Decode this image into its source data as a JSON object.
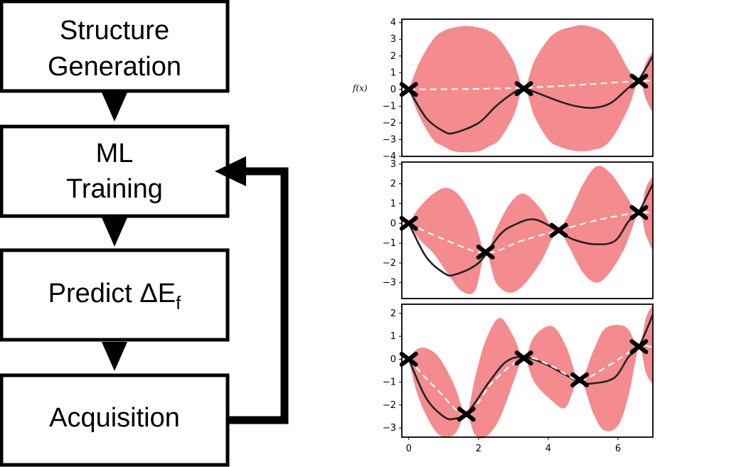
{
  "flowchart": {
    "boxes": [
      {
        "lines": [
          "Structure",
          "Generation"
        ]
      },
      {
        "lines": [
          "ML",
          "Training"
        ]
      },
      {
        "predict_text": "Predict ΔE",
        "predict_subscript": "f"
      },
      {
        "lines": [
          "Acquisition"
        ]
      }
    ]
  },
  "plots": {
    "y_label": "f(x)",
    "x_ticks": [
      "0",
      "2",
      "4",
      "6"
    ],
    "panel1_y_ticks": [
      "4",
      "3",
      "2",
      "1",
      "0",
      "−1",
      "−2",
      "−3",
      "−4"
    ],
    "panel2_y_ticks": [
      "3",
      "2",
      "1",
      "0",
      "−1",
      "−2",
      "−3"
    ],
    "panel3_y_ticks": [
      "2",
      "1",
      "0",
      "−1",
      "−2",
      "−3"
    ]
  },
  "chart_data": [
    {
      "type": "line",
      "ylabel": "f(x)",
      "xlim": [
        -0.2,
        7.0
      ],
      "ylim": [
        -4,
        4.2
      ],
      "series": [
        {
          "role": "true function",
          "style": "solid-black",
          "x": [
            0,
            0.5,
            1.0,
            1.3,
            2.0,
            2.5,
            3.0,
            3.3,
            3.8,
            4.3,
            4.8,
            5.3,
            5.8,
            6.3,
            6.6,
            7.0
          ],
          "y": [
            0,
            -1.7,
            -2.5,
            -2.6,
            -2.0,
            -1.0,
            -0.2,
            0.05,
            -0.3,
            -0.7,
            -1.0,
            -1.1,
            -0.8,
            0.1,
            0.6,
            2.0
          ]
        },
        {
          "role": "predicted mean",
          "style": "dashed-white",
          "x": [
            0,
            3.3,
            6.6,
            7.0
          ],
          "y": [
            0,
            0.1,
            0.5,
            0.45
          ]
        },
        {
          "role": "uncertainty band",
          "style": "fill-pink",
          "x": [
            0.0,
            0.3,
            0.7,
            1.0,
            1.3,
            1.65,
            2.0,
            2.3,
            2.6,
            3.0,
            3.3,
            3.6,
            4.0,
            4.3,
            4.6,
            4.95,
            5.3,
            5.6,
            5.9,
            6.3,
            6.6,
            6.8,
            7.0
          ],
          "y_upper": [
            0,
            1.6,
            3.0,
            3.5,
            3.7,
            3.8,
            3.7,
            3.5,
            3.0,
            1.7,
            0.1,
            1.7,
            3.0,
            3.5,
            3.7,
            3.85,
            3.7,
            3.4,
            2.7,
            1.2,
            0.5,
            1.6,
            2.3
          ],
          "y_lower": [
            0,
            -1.6,
            -3.0,
            -3.4,
            -3.7,
            -3.75,
            -3.7,
            -3.4,
            -3.0,
            -1.6,
            0.1,
            -1.6,
            -3.0,
            -3.4,
            -3.6,
            -3.7,
            -3.6,
            -3.4,
            -2.7,
            -1.1,
            0.5,
            -0.6,
            -1.4
          ]
        },
        {
          "role": "observations",
          "style": "x-markers",
          "x": [
            0,
            3.3,
            6.6
          ],
          "y": [
            0,
            0.05,
            0.5
          ]
        }
      ]
    },
    {
      "type": "line",
      "xlim": [
        -0.2,
        7.0
      ],
      "ylim": [
        -3.8,
        3.1
      ],
      "series": [
        {
          "role": "true function",
          "style": "solid-black",
          "x": [
            0,
            0.5,
            1.0,
            1.3,
            2.0,
            2.6,
            3.0,
            3.6,
            4.3,
            4.7,
            5.3,
            5.9,
            6.3,
            6.6,
            7.0
          ],
          "y": [
            0,
            -1.7,
            -2.5,
            -2.6,
            -2.0,
            -0.6,
            -0.1,
            0.2,
            -0.4,
            -0.8,
            -1.05,
            -0.9,
            0.1,
            0.6,
            2.0
          ]
        },
        {
          "role": "predicted mean",
          "style": "dashed-white",
          "x": [
            0,
            1.0,
            2.2,
            3.2,
            4.3,
            5.5,
            6.6,
            7.0
          ],
          "y": [
            0,
            -0.8,
            -1.5,
            -0.9,
            -0.35,
            0.2,
            0.55,
            0.5
          ]
        },
        {
          "role": "uncertainty band",
          "style": "fill-pink",
          "x": [
            0.0,
            0.3,
            0.7,
            1.1,
            1.5,
            1.9,
            2.2,
            2.5,
            2.9,
            3.3,
            3.8,
            4.1,
            4.3,
            4.6,
            5.0,
            5.4,
            5.8,
            6.2,
            6.6,
            6.8,
            7.0
          ],
          "y_upper": [
            0,
            0.8,
            1.5,
            1.8,
            1.3,
            0.0,
            -1.5,
            -0.3,
            1.0,
            1.5,
            0.7,
            -0.2,
            -0.35,
            0.5,
            2.0,
            2.9,
            2.5,
            1.5,
            0.5,
            1.8,
            2.4
          ],
          "y_lower": [
            0,
            -0.8,
            -1.5,
            -2.5,
            -3.4,
            -3.4,
            -1.5,
            -3.0,
            -3.5,
            -3.1,
            -1.9,
            -0.8,
            -0.35,
            -1.2,
            -2.5,
            -3.0,
            -2.4,
            -1.2,
            0.5,
            -0.6,
            -1.4
          ]
        },
        {
          "role": "observations",
          "style": "x-markers",
          "x": [
            0,
            2.2,
            4.3,
            6.6
          ],
          "y": [
            0,
            -1.45,
            -0.35,
            0.55
          ]
        }
      ]
    },
    {
      "type": "line",
      "xlim": [
        -0.2,
        7.0
      ],
      "ylim": [
        -3.4,
        2.4
      ],
      "x_ticks": [
        0,
        2,
        4,
        6
      ],
      "series": [
        {
          "role": "true function",
          "style": "solid-black",
          "x": [
            0,
            0.5,
            1.0,
            1.3,
            1.7,
            2.3,
            2.8,
            3.3,
            3.9,
            4.4,
            4.9,
            5.3,
            5.9,
            6.3,
            6.6,
            7.0
          ],
          "y": [
            0,
            -1.7,
            -2.5,
            -2.6,
            -2.3,
            -1.0,
            -0.1,
            0.1,
            -0.2,
            -0.6,
            -1.0,
            -1.05,
            -0.8,
            0.1,
            0.55,
            1.95
          ]
        },
        {
          "role": "predicted mean",
          "style": "dashed-white",
          "x": [
            0,
            0.8,
            1.65,
            2.4,
            3.3,
            4.1,
            4.9,
            5.7,
            6.6,
            7.0
          ],
          "y": [
            0,
            -1.3,
            -2.4,
            -1.0,
            0.05,
            -0.3,
            -0.9,
            -0.3,
            0.55,
            0.5
          ]
        },
        {
          "role": "uncertainty band",
          "style": "fill-pink",
          "x": [
            0.0,
            0.2,
            0.45,
            0.8,
            1.1,
            1.35,
            1.65,
            1.9,
            2.2,
            2.6,
            3.0,
            3.3,
            3.6,
            4.1,
            4.5,
            4.9,
            5.3,
            5.6,
            6.0,
            6.3,
            6.6,
            6.8,
            7.0
          ],
          "y_upper": [
            0,
            0.4,
            0.5,
            0.2,
            -0.5,
            -1.3,
            -2.4,
            -0.8,
            0.8,
            1.8,
            1.0,
            0.05,
            1.0,
            1.45,
            0.6,
            -0.9,
            0.4,
            1.3,
            1.5,
            1.3,
            0.5,
            1.8,
            2.4
          ],
          "y_lower": [
            0,
            -1.3,
            -2.3,
            -3.2,
            -3.4,
            -3.2,
            -2.4,
            -3.3,
            -3.4,
            -2.6,
            -1.0,
            0.05,
            -1.0,
            -1.8,
            -2.1,
            -0.9,
            -2.4,
            -3.1,
            -2.9,
            -1.6,
            0.5,
            -0.6,
            -1.1
          ]
        },
        {
          "role": "observations",
          "style": "x-markers",
          "x": [
            0,
            1.65,
            3.3,
            4.9,
            6.6
          ],
          "y": [
            0,
            -2.4,
            0.05,
            -0.9,
            0.55
          ]
        }
      ]
    }
  ]
}
